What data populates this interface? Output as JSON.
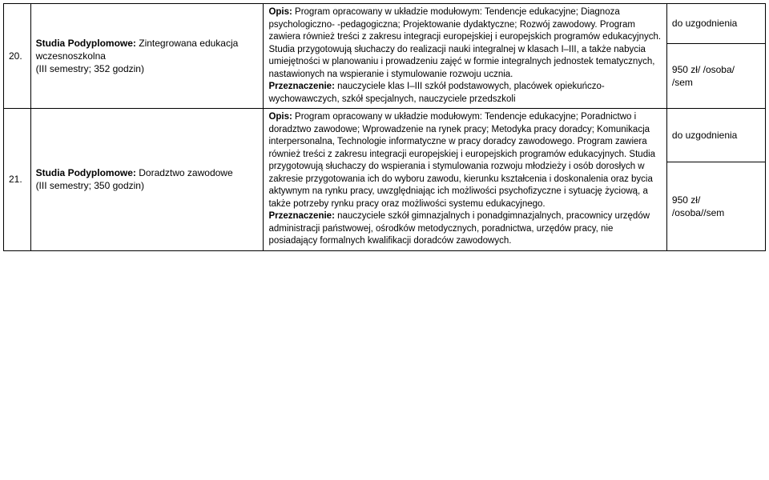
{
  "rows": [
    {
      "num": "20.",
      "title_bold": "Studia Podyplomowe:",
      "title_rest": " Zintegrowana edukacja wczesnoszkolna",
      "title_sub": "(III semestry; 352 godzin)",
      "desc_label1": "Opis:",
      "desc_text1": " Program opracowany w układzie modułowym: Tendencje edukacyjne; Diagnoza psychologiczno- -pedagogiczna; Projektowanie dydaktyczne; Rozwój zawodowy. Program zawiera również treści z zakresu integracji europejskiej i europejskich programów edukacyjnych. Studia przygotowują słuchaczy do realizacji nauki integralnej w klasach I–III, a także nabycia umiejętności w planowaniu i prowadzeniu zajęć w formie integralnych jednostek tematycznych, nastawionych na wspieranie i stymulowanie rozwoju ucznia.",
      "desc_label2": "Przeznaczenie:",
      "desc_text2": " nauczyciele klas I–III szkół podstawowych, placówek opiekuńczo-wychowawczych, szkół specjalnych, nauczyciele przedszkoli",
      "price1": "do uzgodnienia",
      "price2a": "950 zł/ /osoba/",
      "price2b": "/sem"
    },
    {
      "num": "21.",
      "title_bold": "Studia Podyplomowe:",
      "title_rest": " Doradztwo zawodowe",
      "title_sub": "(III semestry; 350 godzin)",
      "desc_label1": "Opis:",
      "desc_text1": " Program opracowany w układzie modułowym: Tendencje edukacyjne; Poradnictwo i doradztwo zawodowe; Wprowadzenie na rynek pracy; Metodyka pracy doradcy; Komunikacja interpersonalna, Technologie informatyczne w pracy doradcy zawodowego. Program zawiera również treści z zakresu integracji europejskiej i europejskich programów edukacyjnych. Studia  przygotowują słuchaczy do wspierania i stymulowania rozwoju młodzieży i osób dorosłych w zakresie przygotowania ich do wyboru zawodu, kierunku kształcenia i doskonalenia oraz bycia aktywnym na rynku pracy, uwzględniając ich możliwości psychofizyczne i sytuację życiową, a także potrzeby rynku pracy oraz możliwości systemu edukacyjnego.",
      "desc_label2": "Przeznaczenie:",
      "desc_text2": " nauczyciele szkół gimnazjalnych i ponadgimnazjalnych, pracownicy urzędów administracji państwowej, ośrodków metodycznych, poradnictwa, urzędów pracy, nie posiadający formalnych kwalifikacji doradców zawodowych.",
      "price1": "do uzgodnienia",
      "price2a": "950 zł/",
      "price2b": "/osoba//sem"
    }
  ]
}
